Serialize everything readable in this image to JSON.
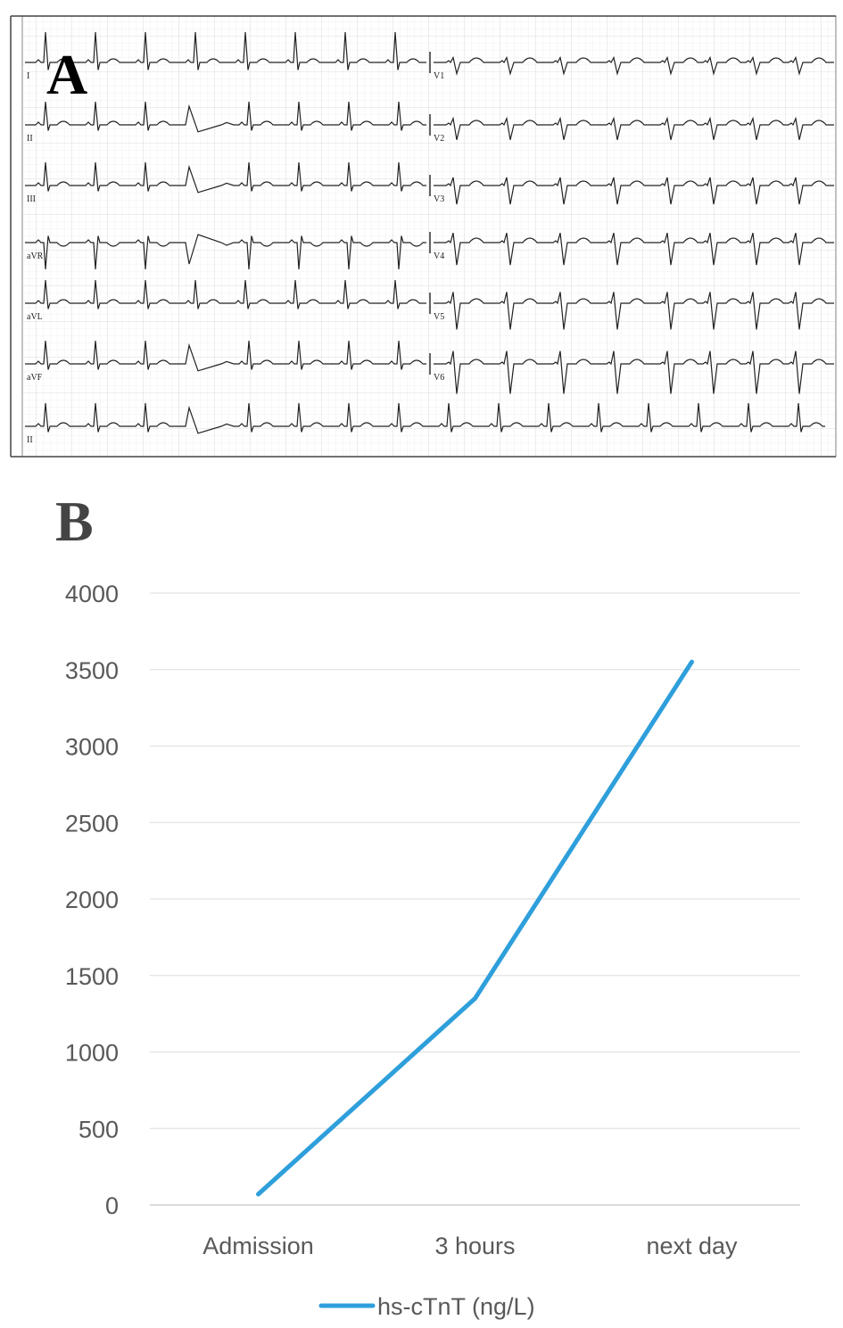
{
  "panel_a": {
    "letter": "A",
    "leads_left": [
      "I",
      "II",
      "III",
      "aVR",
      "aVL",
      "aVF",
      "II"
    ],
    "leads_right": [
      "V1",
      "V2",
      "V3",
      "V4",
      "V5",
      "V6"
    ]
  },
  "panel_b": {
    "letter": "B"
  },
  "chart_data": {
    "type": "line",
    "title": "",
    "xlabel": "",
    "ylabel": "",
    "categories": [
      "Admission",
      "3 hours",
      "next day"
    ],
    "series": [
      {
        "name": "hs-cTnT (ng/L)",
        "color": "#2E9FDB",
        "values": [
          70,
          1350,
          3550
        ]
      }
    ],
    "ylim": [
      0,
      4000
    ],
    "yticks": [
      0,
      500,
      1000,
      1500,
      2000,
      2500,
      3000,
      3500,
      4000
    ],
    "grid": true,
    "legend": "bottom"
  }
}
